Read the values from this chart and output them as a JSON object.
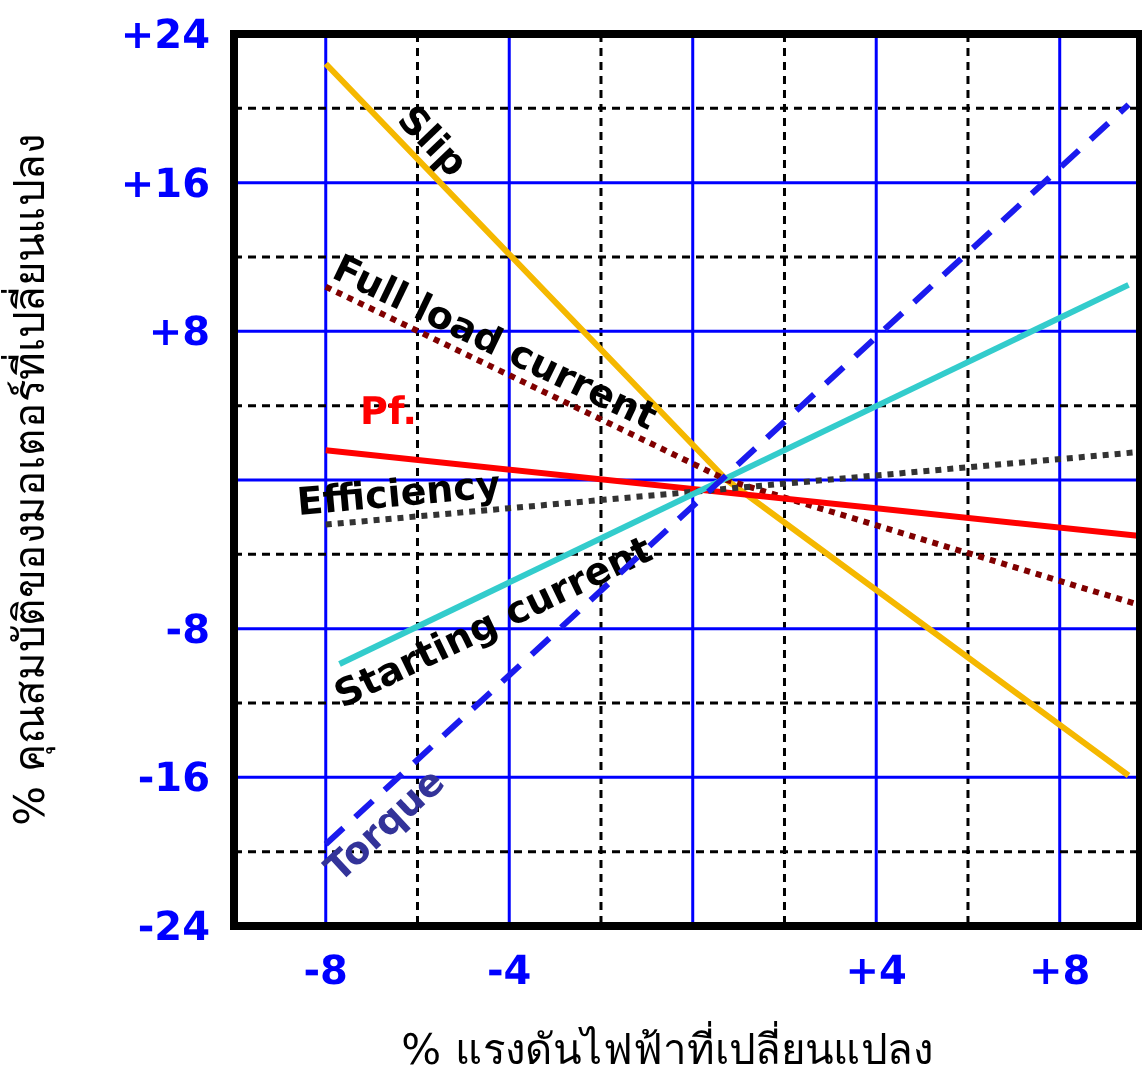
{
  "chart_data": {
    "type": "line",
    "xlabel": "% แรงดันไฟฟ้าที่เปลี่ยนแปลง",
    "ylabel": "% คุณสมบัติของมอเตอร์ที่เปลี่ยนแปลง",
    "xlim": [
      -10,
      9.75
    ],
    "ylim": [
      -24,
      24
    ],
    "xticks": [
      {
        "value": -8,
        "label": "-8"
      },
      {
        "value": -6,
        "label": null
      },
      {
        "value": -4,
        "label": "-4"
      },
      {
        "value": -2,
        "label": null
      },
      {
        "value": 0,
        "label": null
      },
      {
        "value": 2,
        "label": null
      },
      {
        "value": 4,
        "label": "+4"
      },
      {
        "value": 6,
        "label": null
      },
      {
        "value": 8,
        "label": "+8"
      }
    ],
    "yticks": [
      {
        "value": 24,
        "label": "+24"
      },
      {
        "value": 20,
        "label": null
      },
      {
        "value": 16,
        "label": "+16"
      },
      {
        "value": 12,
        "label": null
      },
      {
        "value": 8,
        "label": "+8"
      },
      {
        "value": 4,
        "label": null
      },
      {
        "value": 0,
        "label": null
      },
      {
        "value": -4,
        "label": null
      },
      {
        "value": -8,
        "label": "-8"
      },
      {
        "value": -12,
        "label": null
      },
      {
        "value": -16,
        "label": "-16"
      },
      {
        "value": -20,
        "label": null
      },
      {
        "value": -24,
        "label": "-24"
      }
    ],
    "grid": true,
    "marker": "none",
    "series": [
      {
        "name": "Slip",
        "color": "#f5b800",
        "x": [
          -8,
          0.74,
          9.5
        ],
        "values": [
          22.4,
          0,
          -15.9
        ]
      },
      {
        "name": "Full load current",
        "color": "#800000",
        "line_style": "dotted",
        "x": [
          -8,
          0.74,
          9.7
        ],
        "values": [
          10.4,
          0,
          -6.7
        ]
      },
      {
        "name": "Pf.",
        "color": "#ff0000",
        "x": [
          -8,
          9.7
        ],
        "values": [
          1.6,
          -3
        ]
      },
      {
        "name": "Efficiency",
        "color": "#333333",
        "line_style": "dotted",
        "x": [
          -8,
          9.7
        ],
        "values": [
          -2.4,
          1.5
        ]
      },
      {
        "name": "Starting current",
        "color": "#33cccc",
        "x": [
          -7.7,
          9.5
        ],
        "values": [
          -9.9,
          10.5
        ]
      },
      {
        "name": "Torque",
        "color": "#1a1aee",
        "line_style": "dashed",
        "x": [
          -8,
          9.5
        ],
        "values": [
          -19.6,
          20.2
        ]
      }
    ]
  }
}
